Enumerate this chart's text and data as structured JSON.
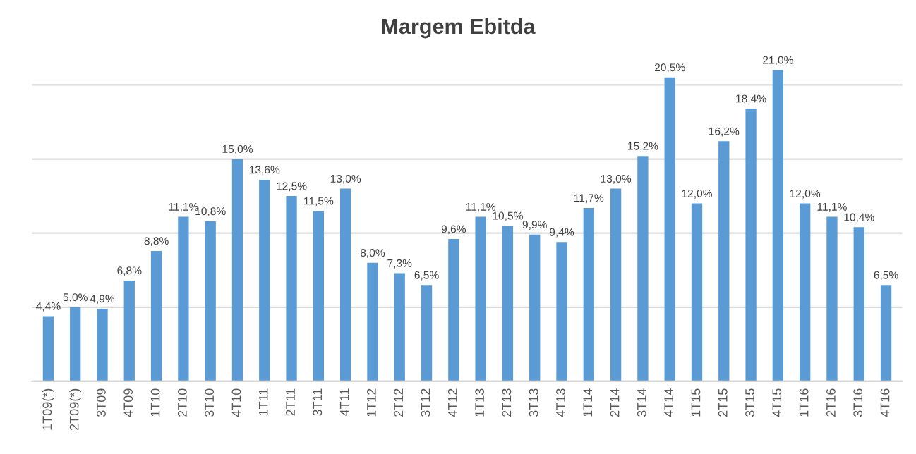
{
  "chart_data": {
    "type": "bar",
    "title": "Margem Ebitda",
    "categories": [
      "1T09(*)",
      "2T09(*)",
      "3T09",
      "4T09",
      "1T10",
      "2T10",
      "3T10",
      "4T10",
      "1T11",
      "2T11",
      "3T11",
      "4T11",
      "1T12",
      "2T12",
      "3T12",
      "4T12",
      "1T13",
      "2T13",
      "3T13",
      "4T13",
      "1T14",
      "2T14",
      "3T14",
      "4T14",
      "1T15",
      "2T15",
      "3T15",
      "4T15",
      "1T16",
      "2T16",
      "3T16",
      "4T16"
    ],
    "values": [
      4.4,
      5.0,
      4.9,
      6.8,
      8.8,
      11.1,
      10.8,
      15.0,
      13.6,
      12.5,
      11.5,
      13.0,
      8.0,
      7.3,
      6.5,
      9.6,
      11.1,
      10.5,
      9.9,
      9.4,
      11.7,
      13.0,
      15.2,
      20.5,
      12.0,
      16.2,
      18.4,
      21.0,
      12.0,
      11.1,
      10.4,
      6.5
    ],
    "value_labels": [
      "4,4%",
      "5,0%",
      "4,9%",
      "6,8%",
      "8,8%",
      "11,1%",
      "10,8%",
      "15,0%",
      "13,6%",
      "12,5%",
      "11,5%",
      "13,0%",
      "8,0%",
      "7,3%",
      "6,5%",
      "9,6%",
      "11,1%",
      "10,5%",
      "9,9%",
      "9,4%",
      "11,7%",
      "13,0%",
      "15,2%",
      "20,5%",
      "12,0%",
      "16,2%",
      "18,4%",
      "21,0%",
      "12,0%",
      "11,1%",
      "10,4%",
      "6,5%"
    ],
    "color": "#5b9bd5",
    "yticks": [
      {
        "value": 0,
        "label": null
      },
      {
        "value": 5,
        "label": null
      },
      {
        "value": 10,
        "label": null
      },
      {
        "value": 15,
        "label": null
      },
      {
        "value": 20,
        "label": null
      }
    ],
    "tick_labels": "x",
    "grid": "y",
    "legend": false
  }
}
